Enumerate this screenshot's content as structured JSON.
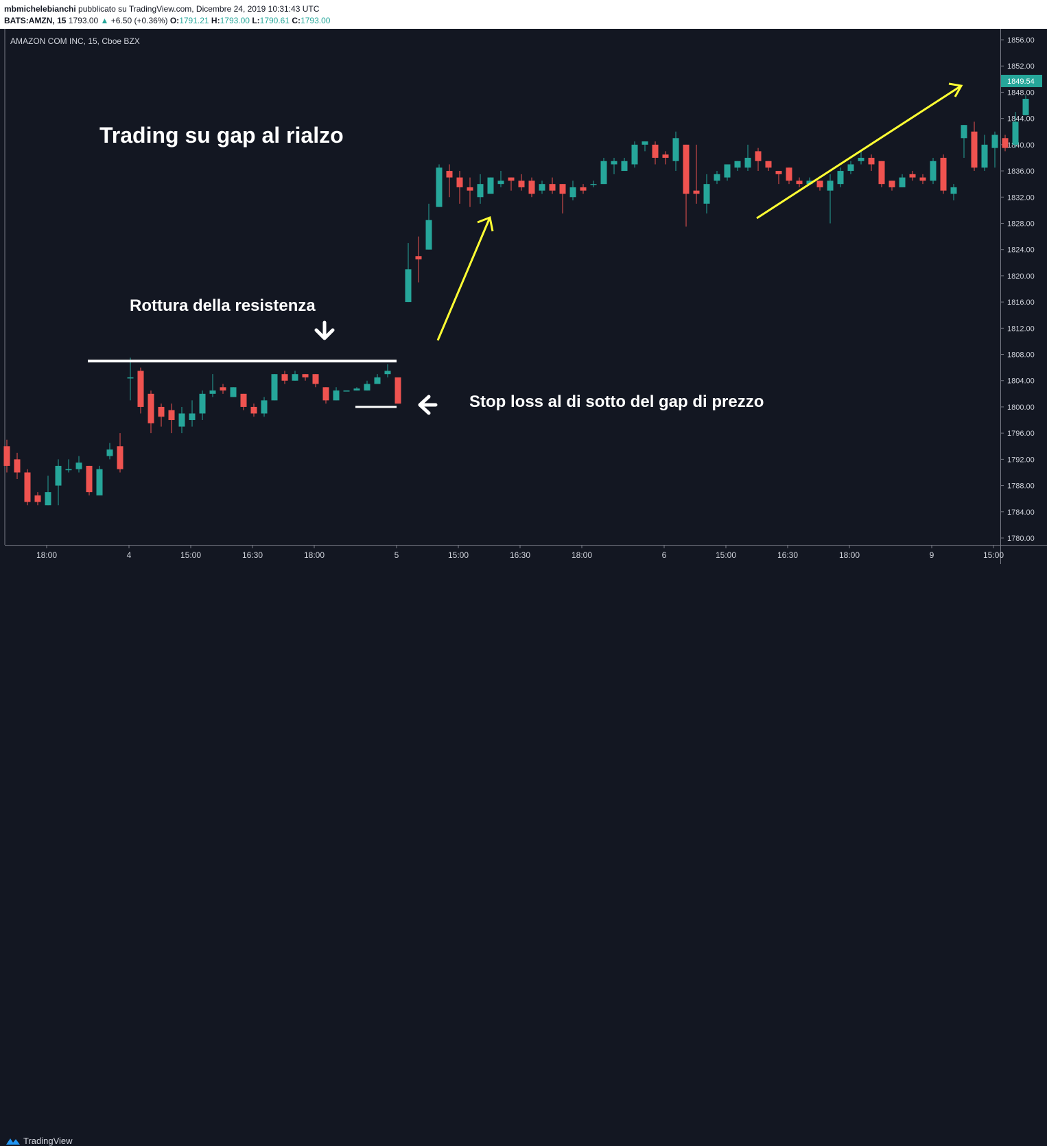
{
  "header": {
    "author": "mbmichelebianchi",
    "published": "pubblicato su TradingView.com, Dicembre 24, 2019 10:31:43 UTC",
    "symbol": "BATS:AMZN, 15",
    "price": "1793.00",
    "arrow": "▲",
    "change": "+6.50 (+0.36%)",
    "o_label": "O:",
    "o_value": "1791.21",
    "h_label": "H:",
    "h_value": "1793.00",
    "l_label": "L:",
    "l_value": "1790.61",
    "c_label": "C:",
    "c_value": "1793.00"
  },
  "footer": {
    "brand": "TradingView"
  },
  "colors": {
    "up": "#26a69a",
    "down": "#ef5350",
    "background": "#131722",
    "annotation": "#ffff33"
  },
  "chart_data": {
    "type": "candlestick",
    "title": "AMAZON COM INC, 15, Cboe BZX",
    "ylim": [
      1778,
      1859
    ],
    "y_ticks": [
      1780,
      1784,
      1788,
      1792,
      1796,
      1800,
      1804,
      1808,
      1812,
      1816,
      1820,
      1824,
      1828,
      1832,
      1836,
      1840,
      1844,
      1848,
      1852,
      1856
    ],
    "y_tick_labels": [
      "1780.00",
      "1784.00",
      "1788.00",
      "1792.00",
      "1796.00",
      "1800.00",
      "1804.00",
      "1808.00",
      "1812.00",
      "1816.00",
      "1820.00",
      "1824.00",
      "1828.00",
      "1832.00",
      "1836.00",
      "1840.00",
      "1844.00",
      "1848.00",
      "1852.00",
      "1856.00"
    ],
    "x_ticks": [
      {
        "bar": 4,
        "label": "18:00"
      },
      {
        "bar": 12,
        "label": "4"
      },
      {
        "bar": 18,
        "label": "15:00"
      },
      {
        "bar": 24,
        "label": "16:30"
      },
      {
        "bar": 30,
        "label": "18:00"
      },
      {
        "bar": 38,
        "label": "5"
      },
      {
        "bar": 44,
        "label": "15:00"
      },
      {
        "bar": 50,
        "label": "16:30"
      },
      {
        "bar": 56,
        "label": "18:00"
      },
      {
        "bar": 64,
        "label": "6"
      },
      {
        "bar": 70,
        "label": "15:00"
      },
      {
        "bar": 76,
        "label": "16:30"
      },
      {
        "bar": 82,
        "label": "18:00"
      },
      {
        "bar": 90,
        "label": "9"
      },
      {
        "bar": 96,
        "label": "15:00"
      }
    ],
    "last_price": "1849.54",
    "candles": [
      [
        1794,
        1791,
        1795,
        1790
      ],
      [
        1792,
        1790,
        1793,
        1789
      ],
      [
        1790,
        1785.5,
        1790.5,
        1785
      ],
      [
        1786.5,
        1785.5,
        1787,
        1785
      ],
      [
        1785,
        1787,
        1789.5,
        1785
      ],
      [
        1788,
        1791,
        1792,
        1785
      ],
      [
        1790.5,
        1790.5,
        1792,
        1790
      ],
      [
        1790.5,
        1791.5,
        1792.5,
        1790
      ],
      [
        1791,
        1787,
        1791,
        1786.5
      ],
      [
        1786.5,
        1790.5,
        1791,
        1786.5
      ],
      [
        1792.5,
        1793.5,
        1794.5,
        1792
      ],
      [
        1794,
        1790.5,
        1796,
        1790
      ],
      [
        1804.5,
        1804.5,
        1807.5,
        1801
      ],
      [
        1805.5,
        1800,
        1806,
        1799
      ],
      [
        1802,
        1797.5,
        1802.5,
        1796
      ],
      [
        1800,
        1798.5,
        1800.5,
        1797
      ],
      [
        1799.5,
        1798,
        1800.5,
        1796
      ],
      [
        1797,
        1799,
        1800,
        1796
      ],
      [
        1798,
        1799,
        1801,
        1797
      ],
      [
        1799,
        1802,
        1802.5,
        1798
      ],
      [
        1802,
        1802.5,
        1805,
        1801.5
      ],
      [
        1803,
        1802.5,
        1803.5,
        1802
      ],
      [
        1801.5,
        1803,
        1803,
        1801.5
      ],
      [
        1802,
        1800,
        1802,
        1799.5
      ],
      [
        1800,
        1799,
        1800.5,
        1798.5
      ],
      [
        1799,
        1801,
        1801.5,
        1798.5
      ],
      [
        1801,
        1805,
        1805,
        1801
      ],
      [
        1805,
        1804,
        1805.5,
        1803.5
      ],
      [
        1804,
        1805,
        1805.5,
        1804
      ],
      [
        1805,
        1804.5,
        1805,
        1804
      ],
      [
        1805,
        1803.5,
        1805,
        1803
      ],
      [
        1803,
        1801,
        1803,
        1800.5
      ],
      [
        1801,
        1802.5,
        1803,
        1801
      ],
      [
        1802.5,
        1802.5,
        1802.5,
        1802.5
      ],
      [
        1802.5,
        1802.8,
        1803,
        1802.5
      ],
      [
        1802.5,
        1803.5,
        1804,
        1802.5
      ],
      [
        1803.5,
        1804.5,
        1805,
        1803.5
      ],
      [
        1805,
        1805.5,
        1806.5,
        1804.5
      ],
      [
        1804.5,
        1800.5,
        1804.5,
        1800.5
      ],
      [
        1816,
        1821,
        1825,
        1816
      ],
      [
        1823,
        1822.5,
        1826,
        1819
      ],
      [
        1824,
        1828.5,
        1831,
        1824
      ],
      [
        1830.5,
        1836.5,
        1837,
        1830.5
      ],
      [
        1836,
        1835,
        1837,
        1832
      ],
      [
        1835,
        1833.5,
        1836,
        1831
      ],
      [
        1833.5,
        1833,
        1835,
        1830.5
      ],
      [
        1832,
        1834,
        1835.5,
        1831
      ],
      [
        1832.5,
        1835,
        1835,
        1832.5
      ],
      [
        1834,
        1834.5,
        1836,
        1833.5
      ],
      [
        1835,
        1834.5,
        1835,
        1833
      ],
      [
        1834.5,
        1833.5,
        1835.5,
        1833
      ],
      [
        1834.5,
        1832.5,
        1835,
        1832
      ],
      [
        1833,
        1834,
        1834.5,
        1832.5
      ],
      [
        1834,
        1833,
        1835,
        1832.5
      ],
      [
        1834,
        1832.5,
        1834,
        1829.5
      ],
      [
        1832,
        1833.5,
        1834.5,
        1831.5
      ],
      [
        1833.5,
        1833,
        1834,
        1832.5
      ],
      [
        1834,
        1834,
        1834.5,
        1833.5
      ],
      [
        1834,
        1837.5,
        1838,
        1834
      ],
      [
        1837,
        1837.5,
        1838,
        1835.5
      ],
      [
        1836,
        1837.5,
        1838,
        1836
      ],
      [
        1837,
        1840,
        1840.5,
        1836.5
      ],
      [
        1840,
        1840.5,
        1840.5,
        1839
      ],
      [
        1840,
        1838,
        1840.5,
        1837
      ],
      [
        1838.5,
        1838,
        1839,
        1837
      ],
      [
        1837.5,
        1841,
        1842,
        1836
      ],
      [
        1840,
        1832.5,
        1840,
        1827.5
      ],
      [
        1833,
        1832.5,
        1840,
        1831
      ],
      [
        1831,
        1834,
        1835.5,
        1829.5
      ],
      [
        1834.5,
        1835.5,
        1836,
        1834
      ],
      [
        1835,
        1837,
        1837,
        1834.5
      ],
      [
        1836.5,
        1837.5,
        1837.5,
        1836
      ],
      [
        1836.5,
        1838,
        1840,
        1836
      ],
      [
        1839,
        1837.5,
        1839.5,
        1836
      ],
      [
        1837.5,
        1836.5,
        1837.5,
        1836
      ],
      [
        1836,
        1835.5,
        1836,
        1834
      ],
      [
        1836.5,
        1834.5,
        1836.5,
        1834
      ],
      [
        1834.5,
        1834,
        1835,
        1833.5
      ],
      [
        1834,
        1834.5,
        1835,
        1834
      ],
      [
        1834.5,
        1833.5,
        1834.5,
        1833
      ],
      [
        1833,
        1834.5,
        1835.5,
        1828
      ],
      [
        1834,
        1836,
        1836.5,
        1833.5
      ],
      [
        1836,
        1837,
        1837.5,
        1835.5
      ],
      [
        1837.5,
        1838,
        1839,
        1837
      ],
      [
        1838,
        1837,
        1838.5,
        1836
      ],
      [
        1837.5,
        1834,
        1837.5,
        1833.5
      ],
      [
        1834.5,
        1833.5,
        1834.5,
        1833
      ],
      [
        1833.5,
        1835,
        1835.5,
        1833.5
      ],
      [
        1835.5,
        1835,
        1836,
        1834.5
      ],
      [
        1835,
        1834.5,
        1835.5,
        1834
      ],
      [
        1834.5,
        1837.5,
        1838,
        1834
      ],
      [
        1838,
        1833,
        1838.5,
        1832.5
      ],
      [
        1832.5,
        1833.5,
        1834,
        1831.5
      ],
      [
        1841,
        1843,
        1843,
        1838
      ],
      [
        1842,
        1836.5,
        1843.5,
        1836
      ],
      [
        1836.5,
        1840,
        1841.5,
        1836
      ],
      [
        1839.5,
        1841.5,
        1842,
        1836.5
      ],
      [
        1841,
        1839.5,
        1841.5,
        1839
      ],
      [
        1840,
        1843.5,
        1845,
        1839.5
      ],
      [
        1844.5,
        1847,
        1847.5,
        1844.5
      ]
    ]
  },
  "annotations": {
    "title": "Trading su gap al rialzo",
    "breakout": "Rottura della resistenza",
    "stop_loss": "Stop loss al di sotto del gap di prezzo",
    "resistance_level": 1807,
    "stop_level": 1800
  }
}
